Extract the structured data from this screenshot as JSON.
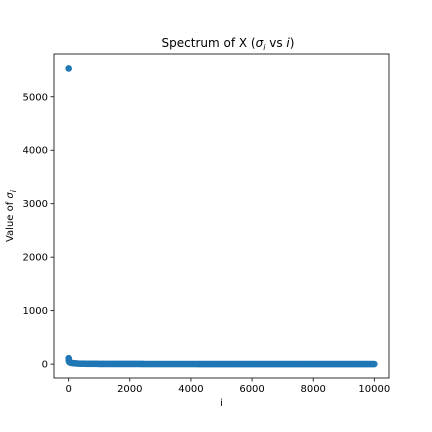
{
  "chart_data": {
    "type": "scatter",
    "title_parts": [
      "Spectrum of X (",
      "σ",
      "i",
      " vs ",
      "i",
      ")"
    ],
    "xlabel": "i",
    "ylabel_parts": [
      "Value of ",
      "σ",
      "i"
    ],
    "xlim": [
      -480,
      10480
    ],
    "ylim": [
      -260,
      5800
    ],
    "xticks": [
      0,
      2000,
      4000,
      6000,
      8000,
      10000
    ],
    "xtick_labels": [
      "0",
      "2000",
      "4000",
      "6000",
      "8000",
      "10000"
    ],
    "yticks": [
      0,
      1000,
      2000,
      3000,
      4000,
      5000
    ],
    "ytick_labels": [
      "0",
      "1000",
      "2000",
      "3000",
      "4000",
      "5000"
    ],
    "grid": false,
    "marker_color": "#1f77b4",
    "series": [
      {
        "x": [
          0,
          1,
          2,
          3,
          5,
          8,
          12,
          18,
          25,
          35,
          50,
          70,
          100,
          150,
          200,
          250,
          300,
          350,
          400,
          500,
          600,
          800,
          1000,
          1200,
          1500,
          2000,
          2500,
          3000,
          3500,
          4000,
          4500,
          5000,
          5500,
          6000,
          6500,
          7000,
          7500,
          8000,
          8500,
          9000,
          9500,
          9999
        ],
        "y": [
          5530,
          110,
          95,
          85,
          70,
          60,
          50,
          45,
          40,
          35,
          30,
          26,
          22,
          18,
          15,
          13,
          11,
          9,
          8,
          7,
          6,
          5,
          4,
          4,
          3,
          3,
          2,
          2,
          2,
          2,
          1,
          1,
          1,
          1,
          1,
          1,
          1,
          1,
          1,
          1,
          1,
          1
        ]
      }
    ]
  }
}
